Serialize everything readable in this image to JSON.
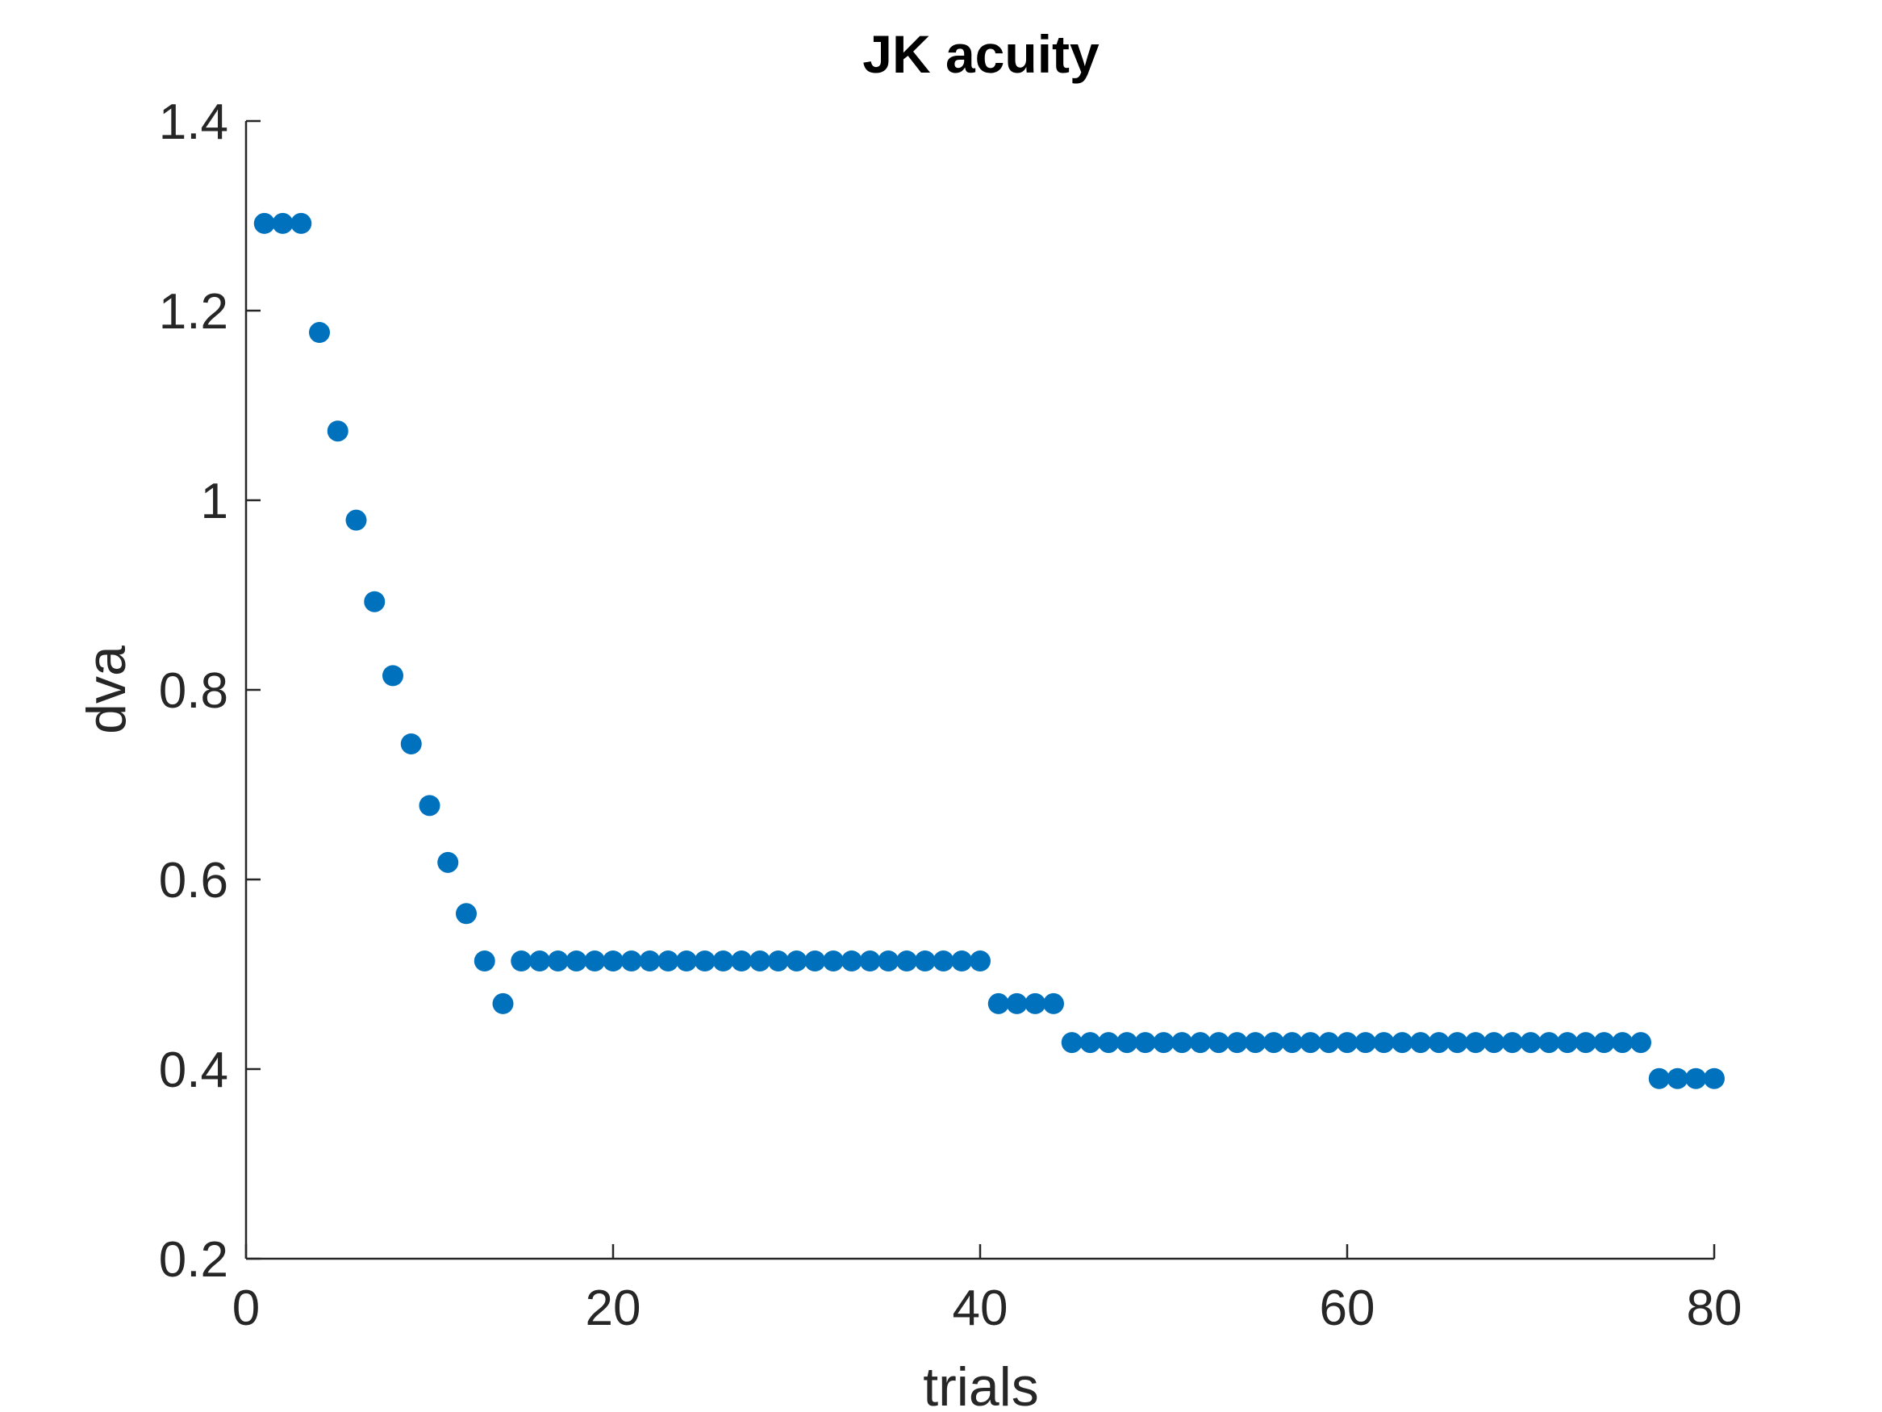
{
  "chart_data": {
    "type": "scatter",
    "title": "JK acuity",
    "xlabel": "trials",
    "ylabel": "dva",
    "xlim": [
      0,
      80
    ],
    "ylim": [
      0.2,
      1.4
    ],
    "xticks": [
      0,
      20,
      40,
      60,
      80
    ],
    "xtick_labels": [
      "0",
      "20",
      "40",
      "60",
      "80"
    ],
    "yticks": [
      0.2,
      0.4,
      0.6,
      0.8,
      1.0,
      1.2,
      1.4
    ],
    "ytick_labels": [
      "0.2",
      "0.4",
      "0.6",
      "0.8",
      "1",
      "1.2",
      "1.4"
    ],
    "grid": false,
    "marker_color": "#0072BD",
    "series": [
      {
        "x": [
          1,
          2,
          3,
          4,
          5,
          6,
          7,
          8,
          9,
          10,
          11,
          12,
          13,
          14,
          15,
          16,
          17,
          18,
          19,
          20,
          21,
          22,
          23,
          24,
          25,
          26,
          27,
          28,
          29,
          30,
          31,
          32,
          33,
          34,
          35,
          36,
          37,
          38,
          39,
          40,
          41,
          42,
          43,
          44,
          45,
          46,
          47,
          48,
          49,
          50,
          51,
          52,
          53,
          54,
          55,
          56,
          57,
          58,
          59,
          60,
          61,
          62,
          63,
          64,
          65,
          66,
          67,
          68,
          69,
          70,
          71,
          72,
          73,
          74,
          75,
          76,
          77,
          78,
          79,
          80
        ],
        "y": [
          1.292,
          1.292,
          1.292,
          1.177,
          1.073,
          0.979,
          0.893,
          0.815,
          0.743,
          0.678,
          0.618,
          0.564,
          0.514,
          0.469,
          0.514,
          0.514,
          0.514,
          0.514,
          0.514,
          0.514,
          0.514,
          0.514,
          0.514,
          0.514,
          0.514,
          0.514,
          0.514,
          0.514,
          0.514,
          0.514,
          0.514,
          0.514,
          0.514,
          0.514,
          0.514,
          0.514,
          0.514,
          0.514,
          0.514,
          0.514,
          0.469,
          0.469,
          0.469,
          0.469,
          0.428,
          0.428,
          0.428,
          0.428,
          0.428,
          0.428,
          0.428,
          0.428,
          0.428,
          0.428,
          0.428,
          0.428,
          0.428,
          0.428,
          0.428,
          0.428,
          0.428,
          0.428,
          0.428,
          0.428,
          0.428,
          0.428,
          0.428,
          0.428,
          0.428,
          0.428,
          0.428,
          0.428,
          0.428,
          0.428,
          0.428,
          0.428,
          0.39,
          0.39,
          0.39,
          0.39
        ]
      }
    ]
  }
}
